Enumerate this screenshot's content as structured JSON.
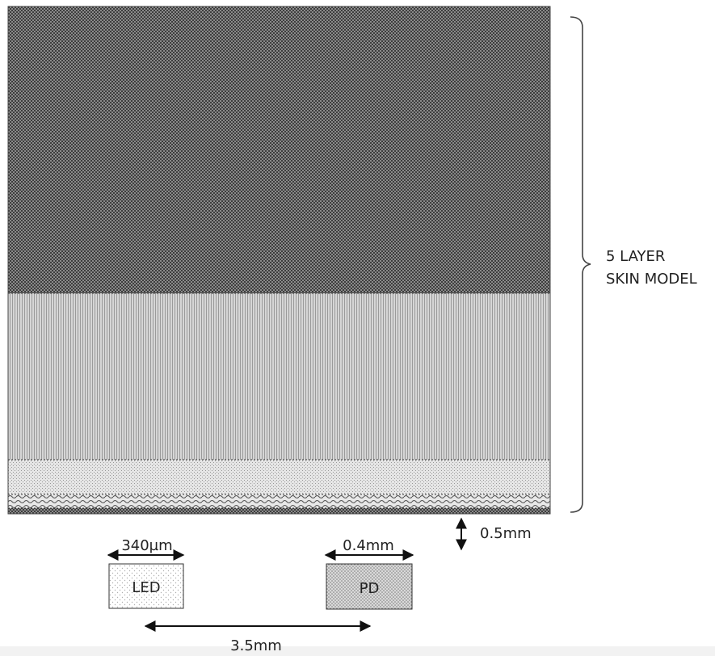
{
  "skin_model": {
    "label_line1": "5 LAYER",
    "label_line2": "SKIN MODEL",
    "layer_count": 5
  },
  "led": {
    "label": "LED",
    "width_label": "340µm"
  },
  "pd": {
    "label": "PD",
    "width_label": "0.4mm"
  },
  "gap_label": "0.5mm",
  "separation_label": "3.5mm"
}
